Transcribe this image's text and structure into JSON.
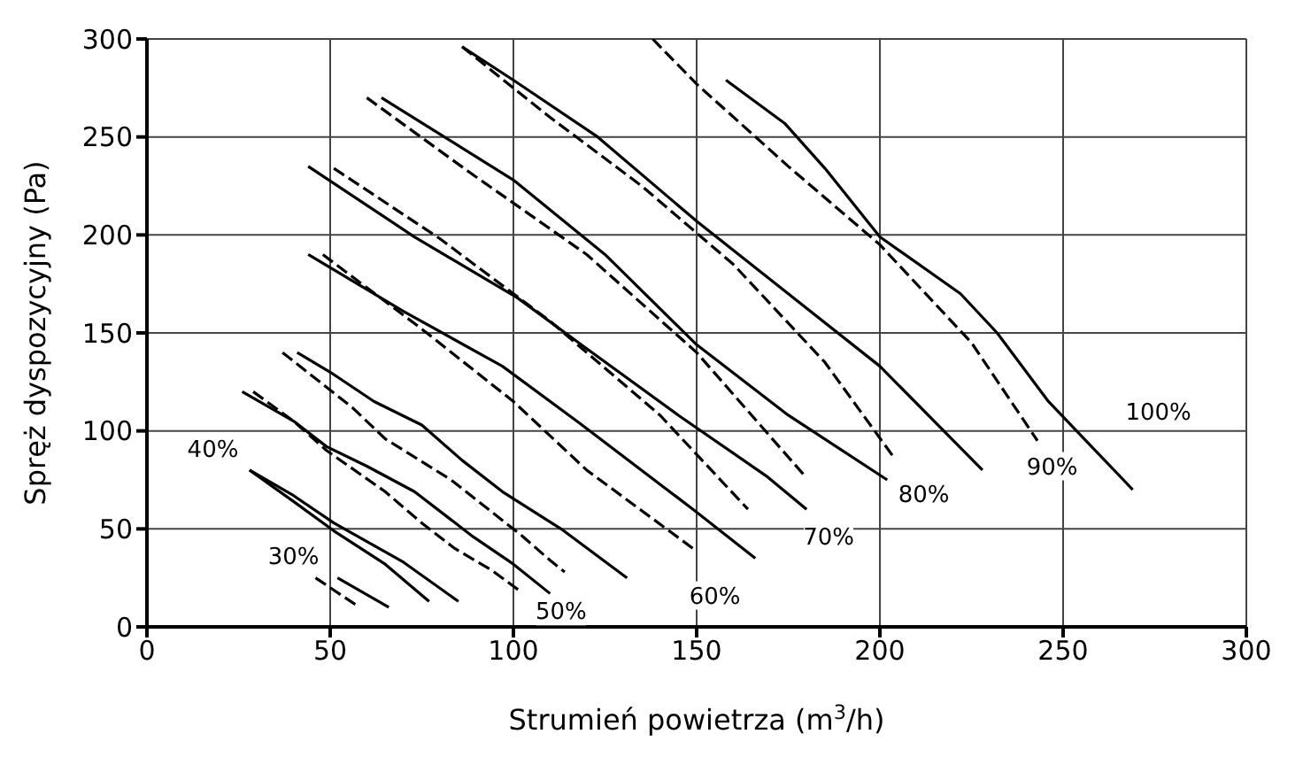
{
  "chart_data": {
    "type": "line",
    "xlabel": "Strumień powietrza (m$^{3}$/h)",
    "ylabel": "Spręż dyspozycyjny (Pa)",
    "xlim": [
      0,
      300
    ],
    "ylim": [
      0,
      300
    ],
    "xticks": [
      0,
      50,
      100,
      150,
      200,
      250,
      300
    ],
    "yticks": [
      0,
      50,
      100,
      150,
      200,
      250,
      300
    ],
    "grid": true,
    "legend": false,
    "marker": "none",
    "series": [
      {
        "color": "#000000",
        "line_style": "dashed",
        "x": [
          46,
          58
        ],
        "values": [
          25,
          10
        ]
      },
      {
        "color": "#000000",
        "line_style": "solid",
        "x": [
          52,
          66
        ],
        "values": [
          25,
          10
        ]
      },
      {
        "color": "#000000",
        "line_style": "solid",
        "x": [
          28,
          40,
          51,
          65,
          77
        ],
        "values": [
          80,
          64,
          49,
          32,
          13
        ]
      },
      {
        "color": "#000000",
        "line_style": "solid",
        "x": [
          28,
          40,
          51,
          70,
          85
        ],
        "values": [
          80,
          67,
          53,
          33,
          13
        ]
      },
      {
        "color": "#000000",
        "line_style": "solid",
        "x": [
          26,
          40,
          49,
          60,
          73,
          89,
          100,
          110
        ],
        "values": [
          120,
          105,
          92,
          82,
          69,
          46,
          32,
          17
        ]
      },
      {
        "color": "#000000",
        "line_style": "dashed",
        "x": [
          29,
          40,
          49,
          65,
          75,
          84,
          94,
          102
        ],
        "values": [
          120,
          105,
          90,
          69,
          53,
          40,
          29,
          18
        ]
      },
      {
        "color": "#000000",
        "line_style": "solid",
        "x": [
          41,
          50,
          62,
          75,
          86,
          97,
          113,
          131
        ],
        "values": [
          140,
          130,
          115,
          103,
          85,
          69,
          50,
          25
        ]
      },
      {
        "color": "#000000",
        "line_style": "dashed",
        "x": [
          37,
          56,
          65,
          83,
          102,
          110,
          114
        ],
        "values": [
          140,
          112,
          96,
          75,
          47,
          34,
          28
        ]
      },
      {
        "color": "#000000",
        "line_style": "solid",
        "x": [
          44,
          70,
          97,
          118,
          149,
          166
        ],
        "values": [
          190,
          161,
          133,
          104,
          60,
          35
        ]
      },
      {
        "color": "#000000",
        "line_style": "dashed",
        "x": [
          48,
          75,
          100,
          120,
          149
        ],
        "values": [
          190,
          152,
          115,
          80,
          40
        ]
      },
      {
        "color": "#000000",
        "line_style": "solid",
        "x": [
          44,
          73,
          101,
          120,
          145,
          169,
          180
        ],
        "values": [
          235,
          199,
          168,
          142,
          108,
          77,
          60
        ]
      },
      {
        "color": "#000000",
        "line_style": "dashed",
        "x": [
          51,
          80,
          110,
          140,
          164
        ],
        "values": [
          234,
          198,
          156,
          108,
          60
        ]
      },
      {
        "color": "#000000",
        "line_style": "solid",
        "x": [
          64,
          100,
          125,
          150,
          175,
          202
        ],
        "values": [
          270,
          228,
          190,
          144,
          108,
          75
        ]
      },
      {
        "color": "#000000",
        "line_style": "dashed",
        "x": [
          60,
          88,
          120,
          150,
          180
        ],
        "values": [
          270,
          232,
          190,
          140,
          76
        ]
      },
      {
        "color": "#000000",
        "line_style": "solid",
        "x": [
          86,
          100,
          123,
          150,
          175,
          200,
          228
        ],
        "values": [
          296,
          279,
          250,
          207,
          170,
          133,
          80
        ]
      },
      {
        "color": "#000000",
        "line_style": "dashed",
        "x": [
          86,
          110,
          135,
          160,
          185,
          204
        ],
        "values": [
          296,
          260,
          225,
          185,
          135,
          86
        ]
      },
      {
        "color": "#000000",
        "line_style": "dashed",
        "x": [
          138,
          150,
          175,
          200,
          225,
          243
        ],
        "values": [
          300,
          277,
          235,
          195,
          145,
          95
        ]
      },
      {
        "color": "#000000",
        "line_style": "solid",
        "x": [
          158,
          174,
          185,
          200,
          222,
          232,
          246,
          269
        ],
        "values": [
          279,
          257,
          234,
          199,
          170,
          150,
          115,
          70
        ]
      }
    ],
    "annotations": [
      "30%",
      "40%",
      "50%",
      "60%",
      "70%",
      "80%",
      "90%",
      "100%"
    ]
  }
}
